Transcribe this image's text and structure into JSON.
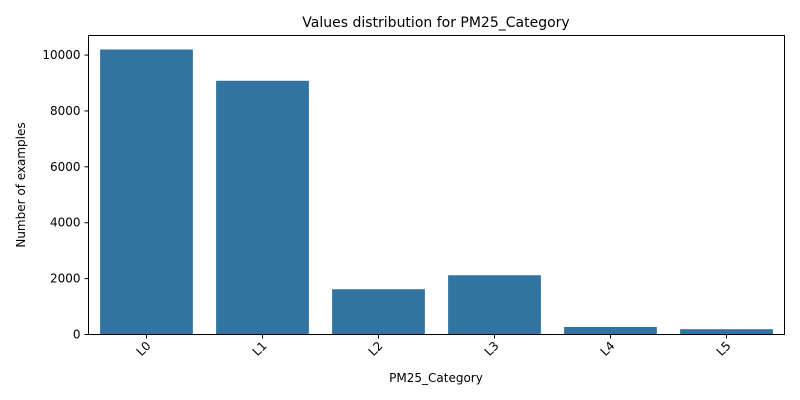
{
  "chart_data": {
    "type": "bar",
    "title": "Values distribution for PM25_Category",
    "xlabel": "PM25_Category",
    "ylabel": "Number of examples",
    "categories": [
      "L0",
      "L1",
      "L2",
      "L3",
      "L4",
      "L5"
    ],
    "values": [
      10200,
      9080,
      1620,
      2120,
      270,
      190
    ],
    "ylim": [
      0,
      10700
    ],
    "yticks": [
      0,
      2000,
      4000,
      6000,
      8000,
      10000
    ],
    "bar_color": "#3274a1",
    "grid": false,
    "legend": "none"
  }
}
